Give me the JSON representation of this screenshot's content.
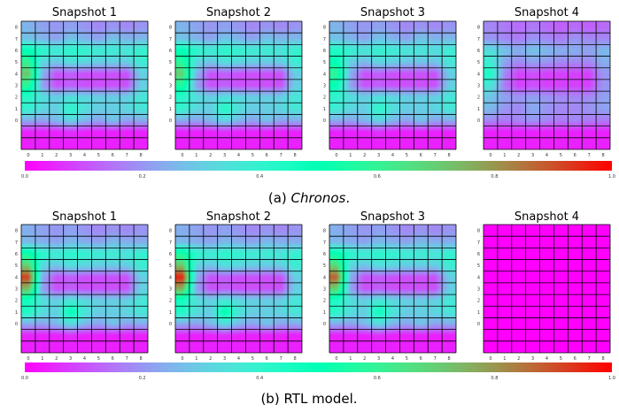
{
  "panels": [
    {
      "caption_prefix": "(a) ",
      "caption_italic": "Chronos",
      "caption_suffix": ".",
      "snapshots": [
        {
          "title": "Snapshot 1",
          "matrix": [
            [
              0.25,
              0.22,
              0.2,
              0.22,
              0.2,
              0.18,
              0.2,
              0.18,
              0.2
            ],
            [
              0.28,
              0.25,
              0.22,
              0.28,
              0.25,
              0.22,
              0.28,
              0.25,
              0.26
            ],
            [
              0.5,
              0.42,
              0.38,
              0.42,
              0.4,
              0.38,
              0.38,
              0.36,
              0.4
            ],
            [
              0.6,
              0.32,
              0.28,
              0.34,
              0.32,
              0.3,
              0.3,
              0.3,
              0.38
            ],
            [
              0.72,
              0.25,
              0.1,
              0.12,
              0.1,
              0.1,
              0.1,
              0.1,
              0.3
            ],
            [
              0.58,
              0.22,
              0.1,
              0.12,
              0.1,
              0.1,
              0.1,
              0.1,
              0.3
            ],
            [
              0.42,
              0.34,
              0.3,
              0.34,
              0.32,
              0.3,
              0.3,
              0.3,
              0.36
            ],
            [
              0.4,
              0.32,
              0.3,
              0.42,
              0.34,
              0.3,
              0.3,
              0.32,
              0.36
            ],
            [
              0.24,
              0.22,
              0.26,
              0.32,
              0.26,
              0.22,
              0.28,
              0.22,
              0.24
            ],
            [
              0.04,
              0.04,
              0.04,
              0.06,
              0.04,
              0.04,
              0.04,
              0.04,
              0.04
            ],
            [
              0.04,
              0.04,
              0.04,
              0.04,
              0.04,
              0.04,
              0.04,
              0.04,
              0.04
            ]
          ]
        },
        {
          "title": "Snapshot 2",
          "matrix": [
            [
              0.25,
              0.22,
              0.2,
              0.22,
              0.2,
              0.18,
              0.2,
              0.18,
              0.2
            ],
            [
              0.28,
              0.25,
              0.22,
              0.28,
              0.25,
              0.22,
              0.28,
              0.25,
              0.26
            ],
            [
              0.5,
              0.42,
              0.38,
              0.42,
              0.4,
              0.38,
              0.38,
              0.36,
              0.4
            ],
            [
              0.58,
              0.32,
              0.28,
              0.34,
              0.32,
              0.3,
              0.3,
              0.3,
              0.38
            ],
            [
              0.7,
              0.25,
              0.1,
              0.12,
              0.1,
              0.1,
              0.1,
              0.1,
              0.3
            ],
            [
              0.56,
              0.22,
              0.1,
              0.12,
              0.1,
              0.1,
              0.1,
              0.1,
              0.3
            ],
            [
              0.42,
              0.34,
              0.3,
              0.34,
              0.32,
              0.3,
              0.3,
              0.3,
              0.36
            ],
            [
              0.4,
              0.32,
              0.3,
              0.44,
              0.34,
              0.3,
              0.3,
              0.32,
              0.36
            ],
            [
              0.24,
              0.22,
              0.26,
              0.32,
              0.26,
              0.22,
              0.28,
              0.22,
              0.24
            ],
            [
              0.04,
              0.04,
              0.04,
              0.06,
              0.04,
              0.04,
              0.04,
              0.04,
              0.04
            ],
            [
              0.04,
              0.04,
              0.04,
              0.04,
              0.04,
              0.04,
              0.04,
              0.04,
              0.04
            ]
          ]
        },
        {
          "title": "Snapshot 3",
          "matrix": [
            [
              0.25,
              0.22,
              0.2,
              0.22,
              0.2,
              0.18,
              0.2,
              0.18,
              0.2
            ],
            [
              0.28,
              0.25,
              0.22,
              0.28,
              0.25,
              0.22,
              0.28,
              0.25,
              0.26
            ],
            [
              0.44,
              0.4,
              0.36,
              0.4,
              0.38,
              0.36,
              0.36,
              0.34,
              0.38
            ],
            [
              0.5,
              0.3,
              0.26,
              0.32,
              0.3,
              0.28,
              0.28,
              0.28,
              0.36
            ],
            [
              0.6,
              0.24,
              0.1,
              0.12,
              0.1,
              0.1,
              0.1,
              0.1,
              0.3
            ],
            [
              0.5,
              0.22,
              0.1,
              0.12,
              0.1,
              0.1,
              0.1,
              0.1,
              0.3
            ],
            [
              0.4,
              0.34,
              0.3,
              0.34,
              0.32,
              0.3,
              0.3,
              0.3,
              0.36
            ],
            [
              0.38,
              0.32,
              0.3,
              0.42,
              0.34,
              0.3,
              0.3,
              0.32,
              0.36
            ],
            [
              0.24,
              0.22,
              0.26,
              0.32,
              0.26,
              0.22,
              0.28,
              0.22,
              0.24
            ],
            [
              0.04,
              0.04,
              0.04,
              0.06,
              0.04,
              0.04,
              0.04,
              0.04,
              0.04
            ],
            [
              0.04,
              0.04,
              0.04,
              0.04,
              0.04,
              0.04,
              0.04,
              0.04,
              0.04
            ]
          ]
        },
        {
          "title": "Snapshot 4",
          "matrix": [
            [
              0.18,
              0.16,
              0.14,
              0.16,
              0.14,
              0.12,
              0.14,
              0.12,
              0.14
            ],
            [
              0.2,
              0.18,
              0.16,
              0.2,
              0.18,
              0.16,
              0.2,
              0.18,
              0.18
            ],
            [
              0.34,
              0.28,
              0.24,
              0.28,
              0.26,
              0.24,
              0.24,
              0.22,
              0.26
            ],
            [
              0.38,
              0.22,
              0.18,
              0.22,
              0.2,
              0.18,
              0.18,
              0.18,
              0.24
            ],
            [
              0.44,
              0.18,
              0.08,
              0.1,
              0.08,
              0.08,
              0.08,
              0.08,
              0.2
            ],
            [
              0.36,
              0.16,
              0.08,
              0.1,
              0.08,
              0.08,
              0.08,
              0.08,
              0.2
            ],
            [
              0.28,
              0.22,
              0.2,
              0.22,
              0.2,
              0.18,
              0.18,
              0.18,
              0.22
            ],
            [
              0.26,
              0.2,
              0.18,
              0.24,
              0.2,
              0.18,
              0.18,
              0.2,
              0.22
            ],
            [
              0.18,
              0.16,
              0.18,
              0.2,
              0.18,
              0.16,
              0.18,
              0.16,
              0.16
            ],
            [
              0.04,
              0.04,
              0.04,
              0.04,
              0.04,
              0.04,
              0.04,
              0.04,
              0.04
            ],
            [
              0.04,
              0.04,
              0.04,
              0.04,
              0.04,
              0.04,
              0.04,
              0.04,
              0.04
            ]
          ]
        }
      ]
    },
    {
      "caption_prefix": "(b) RTL model.",
      "caption_italic": "",
      "caption_suffix": "",
      "snapshots": [
        {
          "title": "Snapshot 1",
          "matrix": [
            [
              0.24,
              0.22,
              0.2,
              0.22,
              0.2,
              0.18,
              0.2,
              0.18,
              0.2
            ],
            [
              0.26,
              0.24,
              0.22,
              0.26,
              0.24,
              0.22,
              0.26,
              0.24,
              0.24
            ],
            [
              0.54,
              0.42,
              0.38,
              0.42,
              0.4,
              0.38,
              0.38,
              0.36,
              0.4
            ],
            [
              0.7,
              0.32,
              0.28,
              0.34,
              0.32,
              0.3,
              0.3,
              0.3,
              0.38
            ],
            [
              0.92,
              0.24,
              0.1,
              0.12,
              0.1,
              0.1,
              0.1,
              0.1,
              0.3
            ],
            [
              0.74,
              0.22,
              0.1,
              0.12,
              0.1,
              0.1,
              0.1,
              0.1,
              0.3
            ],
            [
              0.46,
              0.34,
              0.3,
              0.36,
              0.32,
              0.3,
              0.3,
              0.3,
              0.36
            ],
            [
              0.44,
              0.34,
              0.3,
              0.5,
              0.36,
              0.3,
              0.3,
              0.32,
              0.36
            ],
            [
              0.24,
              0.22,
              0.26,
              0.34,
              0.26,
              0.22,
              0.28,
              0.22,
              0.24
            ],
            [
              0.04,
              0.04,
              0.04,
              0.06,
              0.04,
              0.04,
              0.04,
              0.04,
              0.04
            ],
            [
              0.04,
              0.04,
              0.04,
              0.04,
              0.04,
              0.04,
              0.04,
              0.04,
              0.04
            ]
          ]
        },
        {
          "title": "Snapshot 2",
          "matrix": [
            [
              0.24,
              0.22,
              0.2,
              0.22,
              0.2,
              0.18,
              0.2,
              0.18,
              0.2
            ],
            [
              0.26,
              0.24,
              0.22,
              0.26,
              0.24,
              0.22,
              0.26,
              0.24,
              0.24
            ],
            [
              0.56,
              0.42,
              0.38,
              0.42,
              0.4,
              0.38,
              0.38,
              0.36,
              0.4
            ],
            [
              0.72,
              0.32,
              0.28,
              0.34,
              0.32,
              0.3,
              0.3,
              0.3,
              0.38
            ],
            [
              0.96,
              0.24,
              0.1,
              0.12,
              0.1,
              0.1,
              0.1,
              0.1,
              0.3
            ],
            [
              0.76,
              0.22,
              0.1,
              0.12,
              0.1,
              0.1,
              0.1,
              0.1,
              0.3
            ],
            [
              0.46,
              0.34,
              0.3,
              0.36,
              0.32,
              0.3,
              0.3,
              0.3,
              0.36
            ],
            [
              0.44,
              0.34,
              0.3,
              0.52,
              0.36,
              0.3,
              0.3,
              0.32,
              0.36
            ],
            [
              0.24,
              0.22,
              0.26,
              0.34,
              0.26,
              0.22,
              0.28,
              0.22,
              0.24
            ],
            [
              0.04,
              0.04,
              0.04,
              0.06,
              0.04,
              0.04,
              0.04,
              0.04,
              0.04
            ],
            [
              0.04,
              0.04,
              0.04,
              0.04,
              0.04,
              0.04,
              0.04,
              0.04,
              0.04
            ]
          ]
        },
        {
          "title": "Snapshot 3",
          "matrix": [
            [
              0.24,
              0.22,
              0.2,
              0.22,
              0.2,
              0.18,
              0.2,
              0.18,
              0.2
            ],
            [
              0.26,
              0.24,
              0.22,
              0.26,
              0.24,
              0.22,
              0.26,
              0.24,
              0.24
            ],
            [
              0.52,
              0.42,
              0.38,
              0.42,
              0.4,
              0.38,
              0.38,
              0.36,
              0.4
            ],
            [
              0.68,
              0.32,
              0.28,
              0.34,
              0.32,
              0.3,
              0.3,
              0.3,
              0.38
            ],
            [
              0.88,
              0.24,
              0.1,
              0.12,
              0.1,
              0.1,
              0.1,
              0.1,
              0.3
            ],
            [
              0.7,
              0.22,
              0.1,
              0.12,
              0.1,
              0.1,
              0.1,
              0.1,
              0.3
            ],
            [
              0.44,
              0.34,
              0.3,
              0.36,
              0.32,
              0.3,
              0.3,
              0.3,
              0.36
            ],
            [
              0.42,
              0.34,
              0.3,
              0.48,
              0.36,
              0.3,
              0.3,
              0.32,
              0.36
            ],
            [
              0.24,
              0.22,
              0.26,
              0.34,
              0.26,
              0.22,
              0.28,
              0.22,
              0.24
            ],
            [
              0.04,
              0.04,
              0.04,
              0.06,
              0.04,
              0.04,
              0.04,
              0.04,
              0.04
            ],
            [
              0.04,
              0.04,
              0.04,
              0.04,
              0.04,
              0.04,
              0.04,
              0.04,
              0.04
            ]
          ]
        },
        {
          "title": "Snapshot 4",
          "matrix": [
            [
              0.0,
              0.0,
              0.0,
              0.0,
              0.0,
              0.0,
              0.0,
              0.0,
              0.0
            ],
            [
              0.0,
              0.0,
              0.0,
              0.0,
              0.0,
              0.0,
              0.0,
              0.0,
              0.0
            ],
            [
              0.0,
              0.0,
              0.0,
              0.0,
              0.0,
              0.0,
              0.0,
              0.0,
              0.0
            ],
            [
              0.0,
              0.0,
              0.0,
              0.0,
              0.0,
              0.0,
              0.0,
              0.0,
              0.0
            ],
            [
              0.0,
              0.0,
              0.0,
              0.0,
              0.0,
              0.0,
              0.0,
              0.0,
              0.0
            ],
            [
              0.0,
              0.0,
              0.0,
              0.0,
              0.0,
              0.0,
              0.0,
              0.0,
              0.0
            ],
            [
              0.0,
              0.0,
              0.0,
              0.0,
              0.0,
              0.0,
              0.0,
              0.0,
              0.0
            ],
            [
              0.0,
              0.0,
              0.0,
              0.0,
              0.0,
              0.0,
              0.0,
              0.0,
              0.0
            ],
            [
              0.0,
              0.0,
              0.0,
              0.0,
              0.0,
              0.0,
              0.0,
              0.0,
              0.0
            ],
            [
              0.0,
              0.0,
              0.0,
              0.0,
              0.0,
              0.0,
              0.0,
              0.0,
              0.0
            ],
            [
              0.0,
              0.0,
              0.0,
              0.0,
              0.0,
              0.0,
              0.0,
              0.0,
              0.0
            ]
          ]
        }
      ]
    }
  ],
  "chart_data": {
    "type": "heatmap",
    "colormap": "rainbow",
    "vmin": 0.0,
    "vmax": 1.0,
    "colorbar_ticks": [
      "0.0",
      "0.2",
      "0.4",
      "0.6",
      "0.8",
      "1.0"
    ],
    "x_tick_labels": [
      "0",
      "1",
      "2",
      "3",
      "4",
      "5",
      "6",
      "7",
      "8"
    ],
    "y_tick_labels": [
      "8",
      "7",
      "6",
      "5",
      "4",
      "3",
      "2",
      "1",
      "0"
    ],
    "rows_per_matrix": 11,
    "cols_per_matrix": 9,
    "interpolation": "smooth",
    "grid_color": "#000000"
  }
}
